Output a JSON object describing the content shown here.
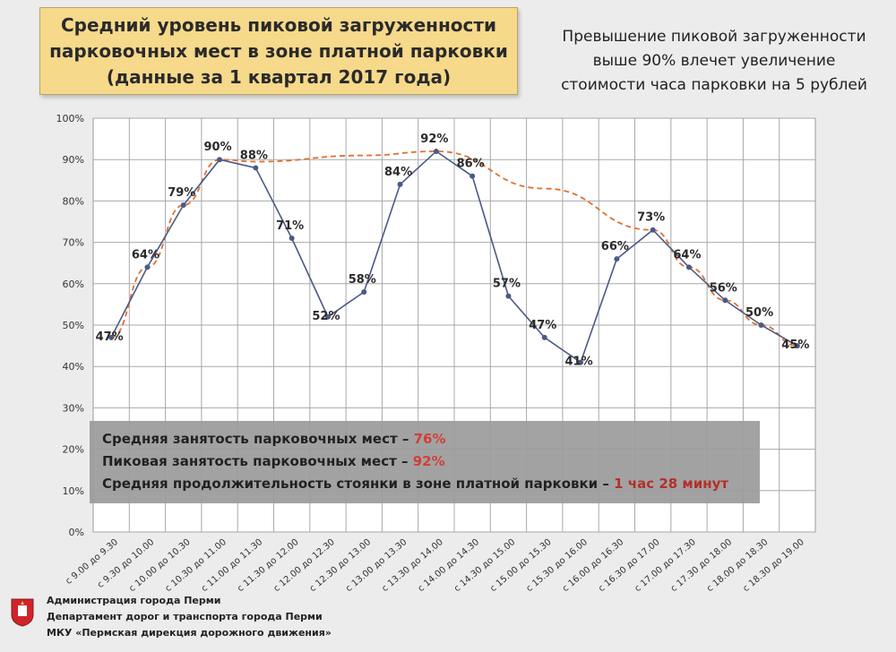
{
  "header": {
    "title_lines": [
      "Средний уровень пиковой загруженности",
      "парковочных мест в зоне платной парковки",
      "(данные за 1 квартал 2017 года)"
    ],
    "note_lines": [
      "Превышение пиковой загруженности",
      "выше 90% влечет увеличение",
      "стоимости часа парковки на 5 рублей"
    ]
  },
  "stats": {
    "avg_label": "Средняя занятость парковочных мест – ",
    "avg_value": "76%",
    "peak_label": "Пиковая занятость парковочных мест – ",
    "peak_value": "92%",
    "duration_label": "Средняя продолжительность стоянки в зоне платной парковки – ",
    "duration_value": "1 час 28 минут"
  },
  "footer": {
    "lines": [
      "Администрация города Перми",
      "Департамент дорог и транспорта города Перми",
      "МКУ «Пермская дирекция дорожного движения»"
    ],
    "icon": "coat-of-arms-icon"
  },
  "chart_data": {
    "type": "line",
    "categories": [
      "с 9.00 до 9.30",
      "с 9.30 до 10.00",
      "с 10.00 до 10.30",
      "с 10.30 до 11.00",
      "с 11.00 до 11.30",
      "с 11.30 до 12.00",
      "с 12.00 до 12.30",
      "с 12.30 до 13.00",
      "с 13.00 до 13.30",
      "с 13.30 до 14.00",
      "с 14.00 до 14.30",
      "с 14.30 до 15.00",
      "с 15.00 до 15.30",
      "с 15.30 до 16.00",
      "с 16.00 до 16.30",
      "с 16.30 до 17.00",
      "с 17.00 до 17.30",
      "с 17.30 до 18.00",
      "с 18.00 до 18.30",
      "с 18.30 до 19.00"
    ],
    "series": [
      {
        "values": [
          47,
          64,
          79,
          90,
          88,
          71,
          52,
          58,
          84,
          92,
          86,
          57,
          47,
          41,
          66,
          73,
          64,
          56,
          50,
          45
        ],
        "labels": [
          "47%",
          "64%",
          "79%",
          "90%",
          "88%",
          "71%",
          "52%",
          "58%",
          "84%",
          "92%",
          "86%",
          "57%",
          "47%",
          "41%",
          "66%",
          "73%",
          "64%",
          "56%",
          "50%",
          "45%"
        ],
        "color": "#4a5a86"
      }
    ],
    "trend": {
      "style": "dashed",
      "color": "#e07030",
      "points": [
        [
          0,
          47
        ],
        [
          1,
          64
        ],
        [
          2,
          79
        ],
        [
          3,
          90
        ],
        [
          4,
          89.5
        ],
        [
          7,
          91
        ],
        [
          9,
          92
        ],
        [
          12,
          83
        ],
        [
          15,
          73
        ],
        [
          16,
          64
        ],
        [
          17,
          56
        ],
        [
          18,
          50
        ],
        [
          19,
          45
        ]
      ]
    },
    "ylim": [
      0,
      100
    ],
    "ytick_step": 10,
    "ytick_suffix": "%",
    "grid": true
  }
}
